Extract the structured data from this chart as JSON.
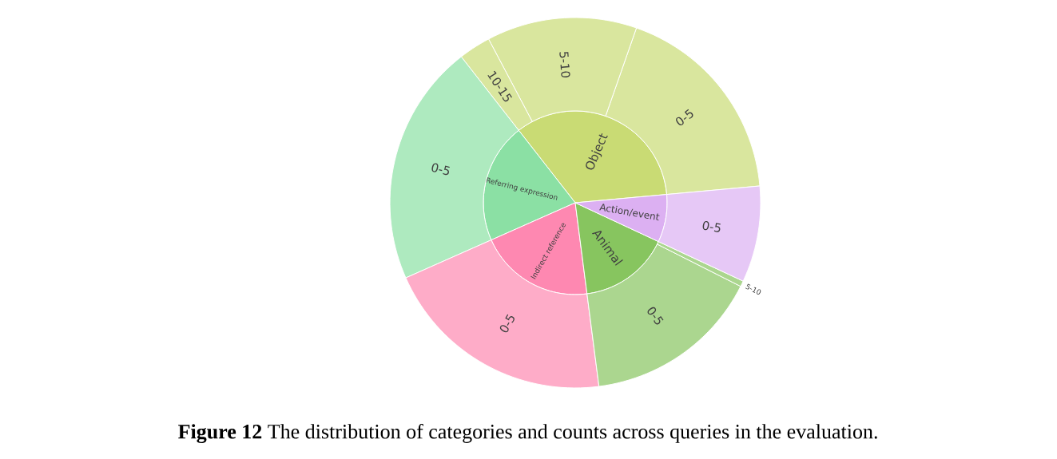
{
  "chart_data": [
    {
      "type": "pie",
      "categories": [
        "Object",
        "Referring expression",
        "Indirect reference",
        "Animal",
        "Action/event"
      ],
      "values": [
        34.1,
        21.1,
        20.4,
        16.0,
        8.4
      ],
      "colors": [
        "#c9db74",
        "#8be0a4",
        "#fe88b1",
        "#87c55f",
        "#dcb0f2"
      ],
      "annotations": [
        "**Figure 12** The distribution of categories and counts across queries in the evaluation."
      ]
    },
    {
      "type": "donut",
      "categories": [
        "0-5",
        "5-10",
        "10-15",
        "0-5",
        "0-5",
        "0-5",
        "5-10",
        "0-5"
      ],
      "values": [
        18.2,
        13.1,
        2.8,
        21.1,
        20.4,
        15.5,
        0.5,
        8.4
      ],
      "colors": [
        "#d9e69e",
        "#d9e69e",
        "#d9e69e",
        "#aeeabf",
        "#feacc8",
        "#abd68f",
        "#abd68f",
        "#e6c8f6"
      ]
    }
  ]
}
